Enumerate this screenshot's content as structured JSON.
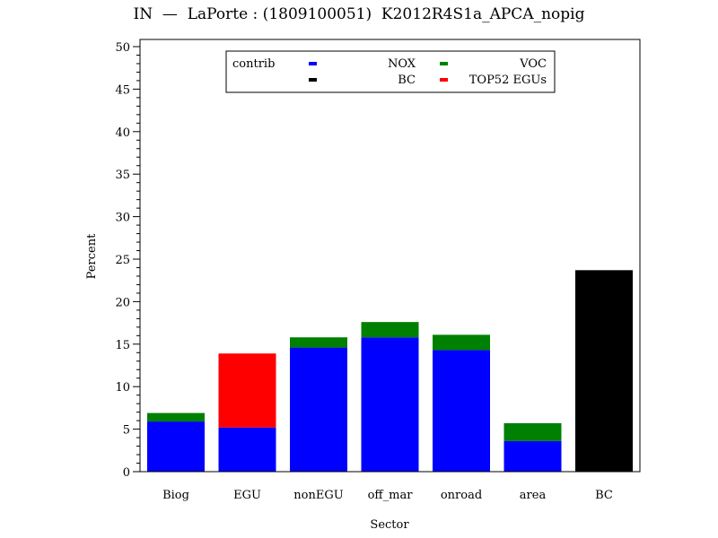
{
  "title": "IN  —  LaPorte : (1809100051)  K2012R4S1a_APCA_nopig",
  "chart_data": {
    "type": "bar",
    "stacked": true,
    "xlabel": "Sector",
    "ylabel": "Percent",
    "ylim": [
      0,
      50
    ],
    "yticks": [
      0,
      5,
      10,
      15,
      20,
      25,
      30,
      35,
      40,
      45,
      50
    ],
    "categories": [
      "Biog",
      "EGU",
      "nonEGU",
      "off_mar",
      "onroad",
      "area",
      "BC"
    ],
    "series": [
      {
        "name": "NOX",
        "color": "#0000ff",
        "values": [
          5.9,
          5.2,
          14.6,
          15.8,
          14.3,
          3.6,
          0
        ]
      },
      {
        "name": "VOC",
        "color": "#008000",
        "values": [
          1.0,
          0,
          1.2,
          1.8,
          1.8,
          2.1,
          0
        ]
      },
      {
        "name": "BC",
        "color": "#000000",
        "values": [
          0,
          0,
          0,
          0,
          0,
          0,
          23.7
        ]
      },
      {
        "name": "TOP52 EGUs",
        "color": "#ff0000",
        "values": [
          0,
          8.7,
          0,
          0,
          0,
          0,
          0
        ]
      }
    ],
    "legend": {
      "title": "contrib",
      "placement": "top-center",
      "rows": [
        [
          "NOX",
          "VOC"
        ],
        [
          "BC",
          "TOP52 EGUs"
        ]
      ]
    },
    "grid": false
  }
}
